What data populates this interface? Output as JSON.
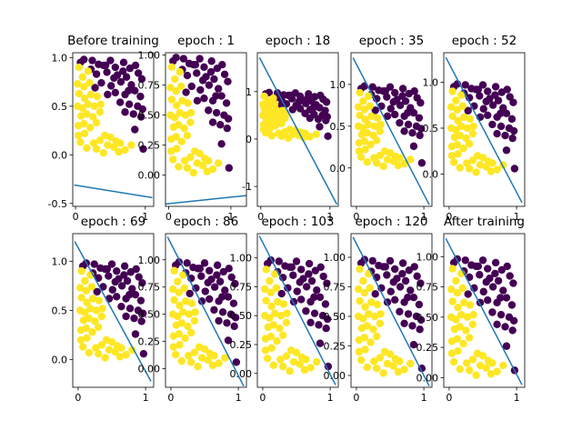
{
  "chart_data": {
    "type": "scatter",
    "classes": {
      "0": {
        "color": "#440154"
      },
      "1": {
        "color": "#fde725"
      }
    },
    "line_color": "#1f77b4",
    "points": [
      [
        0.07,
        0.95,
        0
      ],
      [
        0.12,
        0.98,
        0
      ],
      [
        0.24,
        0.97,
        0
      ],
      [
        0.33,
        0.93,
        0
      ],
      [
        0.4,
        0.92,
        0
      ],
      [
        0.5,
        0.97,
        0
      ],
      [
        0.57,
        0.9,
        0
      ],
      [
        0.69,
        0.95,
        0
      ],
      [
        0.78,
        0.89,
        0
      ],
      [
        0.86,
        0.92,
        0
      ],
      [
        0.3,
        0.83,
        0
      ],
      [
        0.45,
        0.85,
        0
      ],
      [
        0.6,
        0.82,
        0
      ],
      [
        0.73,
        0.8,
        0
      ],
      [
        0.9,
        0.84,
        0
      ],
      [
        0.37,
        0.74,
        0
      ],
      [
        0.51,
        0.71,
        0
      ],
      [
        0.65,
        0.75,
        0
      ],
      [
        0.8,
        0.72,
        0
      ],
      [
        0.95,
        0.78,
        0
      ],
      [
        0.57,
        0.64,
        0
      ],
      [
        0.71,
        0.62,
        0
      ],
      [
        0.85,
        0.66,
        0
      ],
      [
        0.93,
        0.6,
        0
      ],
      [
        0.46,
        0.62,
        0
      ],
      [
        0.64,
        0.54,
        0
      ],
      [
        0.77,
        0.52,
        0
      ],
      [
        0.89,
        0.5,
        0
      ],
      [
        0.96,
        0.47,
        0
      ],
      [
        0.83,
        0.42,
        0
      ],
      [
        0.71,
        0.44,
        0
      ],
      [
        0.94,
        0.39,
        0
      ],
      [
        0.85,
        0.26,
        0
      ],
      [
        0.97,
        0.06,
        0
      ],
      [
        0.22,
        0.88,
        0
      ],
      [
        0.55,
        0.79,
        0
      ],
      [
        0.43,
        0.92,
        0
      ],
      [
        0.68,
        0.86,
        0
      ],
      [
        0.28,
        0.69,
        0
      ],
      [
        0.76,
        0.66,
        0
      ],
      [
        0.05,
        0.9,
        1
      ],
      [
        0.1,
        0.8,
        1
      ],
      [
        0.18,
        0.86,
        1
      ],
      [
        0.03,
        0.73,
        1
      ],
      [
        0.12,
        0.7,
        1
      ],
      [
        0.2,
        0.74,
        1
      ],
      [
        0.05,
        0.63,
        1
      ],
      [
        0.13,
        0.58,
        1
      ],
      [
        0.22,
        0.62,
        1
      ],
      [
        0.31,
        0.6,
        1
      ],
      [
        0.03,
        0.5,
        1
      ],
      [
        0.1,
        0.48,
        1
      ],
      [
        0.18,
        0.52,
        1
      ],
      [
        0.27,
        0.5,
        1
      ],
      [
        0.36,
        0.52,
        1
      ],
      [
        0.08,
        0.4,
        1
      ],
      [
        0.16,
        0.42,
        1
      ],
      [
        0.25,
        0.39,
        1
      ],
      [
        0.35,
        0.44,
        1
      ],
      [
        0.04,
        0.3,
        1
      ],
      [
        0.12,
        0.32,
        1
      ],
      [
        0.21,
        0.28,
        1
      ],
      [
        0.3,
        0.33,
        1
      ],
      [
        0.04,
        0.2,
        1
      ],
      [
        0.13,
        0.22,
        1
      ],
      [
        0.42,
        0.2,
        1
      ],
      [
        0.5,
        0.18,
        1
      ],
      [
        0.58,
        0.14,
        1
      ],
      [
        0.46,
        0.1,
        1
      ],
      [
        0.55,
        0.08,
        1
      ],
      [
        0.64,
        0.12,
        1
      ],
      [
        0.35,
        0.15,
        1
      ],
      [
        0.26,
        0.12,
        1
      ],
      [
        0.16,
        0.07,
        1
      ],
      [
        0.62,
        0.03,
        1
      ],
      [
        0.71,
        0.05,
        1
      ],
      [
        0.8,
        0.1,
        1
      ],
      [
        0.4,
        0.02,
        1
      ],
      [
        0.07,
        0.13,
        1
      ],
      [
        0.3,
        0.06,
        1
      ]
    ],
    "panels": [
      {
        "title": "Before training",
        "xticks": [
          0,
          1
        ],
        "yticks": [
          -0.5,
          0.0,
          0.5,
          1.0
        ],
        "xlim": [
          -0.04,
          1.12
        ],
        "ylim": [
          -0.53,
          1.05
        ],
        "line": [
          [
            -0.02,
            -0.31
          ],
          [
            1.1,
            -0.44
          ]
        ]
      },
      {
        "title": "epoch : 1",
        "xticks": [
          0,
          1
        ],
        "yticks": [
          0.0,
          0.25,
          0.5,
          0.75,
          1.0
        ],
        "xlim": [
          -0.05,
          1.25
        ],
        "ylim": [
          -0.26,
          1.02
        ],
        "line": [
          [
            -0.05,
            -0.24
          ],
          [
            1.25,
            -0.17
          ]
        ]
      },
      {
        "title": "epoch : 18",
        "xticks": [
          0,
          1
        ],
        "yticks": [
          -1,
          0,
          1
        ],
        "xlim": [
          -0.05,
          1.12
        ],
        "ylim": [
          -1.42,
          1.82
        ],
        "line": [
          [
            -0.02,
            1.72
          ],
          [
            1.1,
            -1.38
          ]
        ]
      },
      {
        "title": "epoch : 35",
        "xticks": [
          0,
          1
        ],
        "yticks": [
          0.0,
          0.5,
          1.0
        ],
        "xlim": [
          -0.08,
          1.12
        ],
        "ylim": [
          -0.46,
          1.38
        ],
        "line": [
          [
            -0.05,
            1.32
          ],
          [
            1.08,
            -0.44
          ]
        ]
      },
      {
        "title": "epoch : 52",
        "xticks": [
          0,
          1
        ],
        "yticks": [
          0.0,
          0.5,
          1.0
        ],
        "xlim": [
          -0.08,
          1.12
        ],
        "ylim": [
          -0.35,
          1.32
        ],
        "line": [
          [
            -0.05,
            1.27
          ],
          [
            1.08,
            -0.31
          ]
        ]
      },
      {
        "title": "epoch : 69",
        "xticks": [
          0,
          1
        ],
        "yticks": [
          0.0,
          0.5,
          1.0
        ],
        "xlim": [
          -0.08,
          1.12
        ],
        "ylim": [
          -0.28,
          1.28
        ],
        "line": [
          [
            -0.05,
            1.2
          ],
          [
            1.08,
            -0.22
          ]
        ]
      },
      {
        "title": "epoch : 86",
        "xticks": [
          0,
          1
        ],
        "yticks": [
          0.0,
          0.25,
          0.5,
          0.75,
          1.0
        ],
        "xlim": [
          -0.08,
          1.12
        ],
        "ylim": [
          -0.17,
          1.24
        ],
        "line": [
          [
            -0.05,
            1.21
          ],
          [
            1.08,
            -0.16
          ]
        ]
      },
      {
        "title": "epoch : 103",
        "xticks": [
          0,
          1
        ],
        "yticks": [
          0.0,
          0.25,
          0.5,
          0.75,
          1.0
        ],
        "xlim": [
          -0.08,
          1.12
        ],
        "ylim": [
          -0.12,
          1.21
        ],
        "line": [
          [
            -0.05,
            1.19
          ],
          [
            1.08,
            -0.1
          ]
        ]
      },
      {
        "title": "epoch : 120",
        "xticks": [
          0,
          1
        ],
        "yticks": [
          0.0,
          0.25,
          0.5,
          0.75,
          1.0
        ],
        "xlim": [
          -0.08,
          1.12
        ],
        "ylim": [
          -0.1,
          1.2
        ],
        "line": [
          [
            -0.05,
            1.17
          ],
          [
            1.08,
            -0.09
          ]
        ]
      },
      {
        "title": "After training",
        "xticks": [
          0,
          1
        ],
        "yticks": [
          0.0,
          0.25,
          0.5,
          0.75,
          1.0
        ],
        "xlim": [
          -0.08,
          1.12
        ],
        "ylim": [
          -0.08,
          1.19
        ],
        "line": [
          [
            -0.05,
            1.15
          ],
          [
            1.08,
            -0.06
          ]
        ]
      }
    ]
  }
}
